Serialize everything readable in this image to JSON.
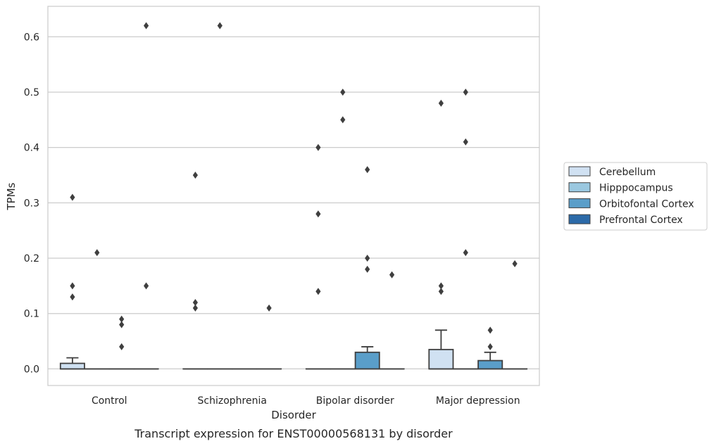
{
  "chart_data": {
    "type": "box",
    "caption": "Transcript expression for ENST00000568131 by disorder",
    "xlabel": "Disorder",
    "ylabel": "TPMs",
    "ylim": [
      -0.03,
      0.655
    ],
    "yticks": [
      0.0,
      0.1,
      0.2,
      0.3,
      0.4,
      0.5,
      0.6
    ],
    "ytick_labels": [
      "0.0",
      "0.1",
      "0.2",
      "0.3",
      "0.4",
      "0.5",
      "0.6"
    ],
    "grid": "horizontal",
    "legend_position": "center-right",
    "categories": [
      "Control",
      "Schizophrenia",
      "Bipolar disorder",
      "Major depression"
    ],
    "series": [
      {
        "name": "Cerebellum",
        "color": "#d0e1f2",
        "boxes": [
          {
            "q1": 0.0,
            "median": 0.0,
            "q3": 0.01,
            "whisker_low": 0.0,
            "whisker_high": 0.02,
            "outliers": [
              0.31,
              0.15,
              0.13
            ]
          },
          {
            "q1": 0.0,
            "median": 0.0,
            "q3": 0.0,
            "whisker_low": 0.0,
            "whisker_high": 0.0,
            "outliers": [
              0.35,
              0.12,
              0.11
            ]
          },
          {
            "q1": 0.0,
            "median": 0.0,
            "q3": 0.0,
            "whisker_low": 0.0,
            "whisker_high": 0.0,
            "outliers": [
              0.4,
              0.28,
              0.14
            ]
          },
          {
            "q1": 0.0,
            "median": 0.0,
            "q3": 0.035,
            "whisker_low": 0.0,
            "whisker_high": 0.07,
            "outliers": [
              0.48,
              0.15,
              0.14
            ]
          }
        ]
      },
      {
        "name": "Hipppocampus",
        "color": "#9ac8e0",
        "boxes": [
          {
            "q1": 0.0,
            "median": 0.0,
            "q3": 0.0,
            "whisker_low": 0.0,
            "whisker_high": 0.0,
            "outliers": [
              0.21
            ]
          },
          {
            "q1": 0.0,
            "median": 0.0,
            "q3": 0.0,
            "whisker_low": 0.0,
            "whisker_high": 0.0,
            "outliers": [
              0.62
            ]
          },
          {
            "q1": 0.0,
            "median": 0.0,
            "q3": 0.0,
            "whisker_low": 0.0,
            "whisker_high": 0.0,
            "outliers": [
              0.5,
              0.45
            ]
          },
          {
            "q1": 0.0,
            "median": 0.0,
            "q3": 0.0,
            "whisker_low": 0.0,
            "whisker_high": 0.0,
            "outliers": [
              0.5,
              0.41,
              0.21
            ]
          }
        ]
      },
      {
        "name": "Orbitofontal Cortex",
        "color": "#5a9ec9",
        "boxes": [
          {
            "q1": 0.0,
            "median": 0.0,
            "q3": 0.0,
            "whisker_low": 0.0,
            "whisker_high": 0.0,
            "outliers": [
              0.09,
              0.08,
              0.04
            ]
          },
          {
            "q1": 0.0,
            "median": 0.0,
            "q3": 0.0,
            "whisker_low": 0.0,
            "whisker_high": 0.0,
            "outliers": []
          },
          {
            "q1": 0.0,
            "median": 0.0,
            "q3": 0.03,
            "whisker_low": 0.0,
            "whisker_high": 0.04,
            "outliers": [
              0.36,
              0.2,
              0.18
            ]
          },
          {
            "q1": 0.0,
            "median": 0.0,
            "q3": 0.015,
            "whisker_low": 0.0,
            "whisker_high": 0.03,
            "outliers": [
              0.07,
              0.04
            ]
          }
        ]
      },
      {
        "name": "Prefrontal Cortex",
        "color": "#2c6aa8",
        "boxes": [
          {
            "q1": 0.0,
            "median": 0.0,
            "q3": 0.0,
            "whisker_low": 0.0,
            "whisker_high": 0.0,
            "outliers": [
              0.62,
              0.15
            ]
          },
          {
            "q1": 0.0,
            "median": 0.0,
            "q3": 0.0,
            "whisker_low": 0.0,
            "whisker_high": 0.0,
            "outliers": [
              0.11
            ]
          },
          {
            "q1": 0.0,
            "median": 0.0,
            "q3": 0.0,
            "whisker_low": 0.0,
            "whisker_high": 0.0,
            "outliers": [
              0.17
            ]
          },
          {
            "q1": 0.0,
            "median": 0.0,
            "q3": 0.0,
            "whisker_low": 0.0,
            "whisker_high": 0.0,
            "outliers": [
              0.19
            ]
          }
        ]
      }
    ]
  }
}
